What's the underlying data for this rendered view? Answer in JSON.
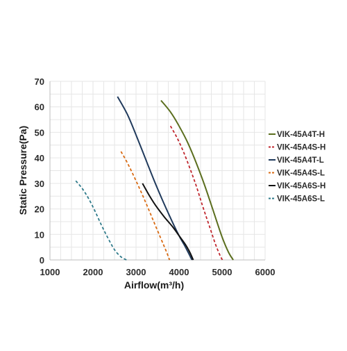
{
  "chart_data": {
    "type": "line",
    "title": "",
    "xlabel": "Airflow(m³/h)",
    "ylabel": "Static Pressure(Pa)",
    "xlim": [
      1000,
      6000
    ],
    "ylim": [
      0,
      70
    ],
    "xticks": [
      1000,
      2000,
      3000,
      4000,
      5000,
      6000
    ],
    "yticks": [
      0,
      10,
      20,
      30,
      40,
      50,
      60,
      70
    ],
    "grid": true,
    "legend_position": "right",
    "series": [
      {
        "name": "VIK-45A4T-H",
        "color": "#5b6e1e",
        "dash": "solid",
        "points": [
          [
            3580,
            62.5
          ],
          [
            3800,
            58
          ],
          [
            4000,
            52.5
          ],
          [
            4200,
            46
          ],
          [
            4400,
            38
          ],
          [
            4600,
            29
          ],
          [
            4800,
            19
          ],
          [
            5000,
            9
          ],
          [
            5150,
            3
          ],
          [
            5260,
            0
          ]
        ]
      },
      {
        "name": "VIK-45A4S-H",
        "color": "#c0262d",
        "dash": "dashed",
        "points": [
          [
            3800,
            52.5
          ],
          [
            3950,
            48
          ],
          [
            4100,
            42.5
          ],
          [
            4250,
            36
          ],
          [
            4400,
            29
          ],
          [
            4550,
            21
          ],
          [
            4700,
            13.5
          ],
          [
            4850,
            6
          ],
          [
            4960,
            1.5
          ],
          [
            5010,
            0
          ]
        ]
      },
      {
        "name": "VIK-45A4T-L",
        "color": "#203a5c",
        "dash": "solid",
        "points": [
          [
            2570,
            64
          ],
          [
            2800,
            57
          ],
          [
            3000,
            49
          ],
          [
            3200,
            40.5
          ],
          [
            3400,
            32
          ],
          [
            3600,
            24
          ],
          [
            3800,
            16.5
          ],
          [
            4000,
            9.5
          ],
          [
            4150,
            5
          ],
          [
            4300,
            0
          ]
        ]
      },
      {
        "name": "VIK-45A4S-L",
        "color": "#d96a12",
        "dash": "dashed",
        "points": [
          [
            2650,
            42.5
          ],
          [
            2800,
            38
          ],
          [
            3000,
            31
          ],
          [
            3200,
            23.5
          ],
          [
            3400,
            15.5
          ],
          [
            3600,
            7.5
          ],
          [
            3700,
            3.5
          ],
          [
            3780,
            0
          ]
        ]
      },
      {
        "name": "VIK-45A6S-H",
        "color": "#111111",
        "dash": "solid",
        "points": [
          [
            3150,
            30
          ],
          [
            3300,
            25.5
          ],
          [
            3450,
            21.5
          ],
          [
            3650,
            17
          ],
          [
            3850,
            13
          ],
          [
            4000,
            9.5
          ],
          [
            4150,
            6
          ],
          [
            4250,
            3
          ],
          [
            4330,
            0
          ]
        ]
      },
      {
        "name": "VIK-45A6S-L",
        "color": "#2e7a8a",
        "dash": "dashed",
        "points": [
          [
            1600,
            31
          ],
          [
            1750,
            28
          ],
          [
            1900,
            24
          ],
          [
            2050,
            19
          ],
          [
            2200,
            13.5
          ],
          [
            2350,
            8.5
          ],
          [
            2500,
            4
          ],
          [
            2650,
            1.2
          ],
          [
            2780,
            0
          ]
        ]
      }
    ]
  }
}
